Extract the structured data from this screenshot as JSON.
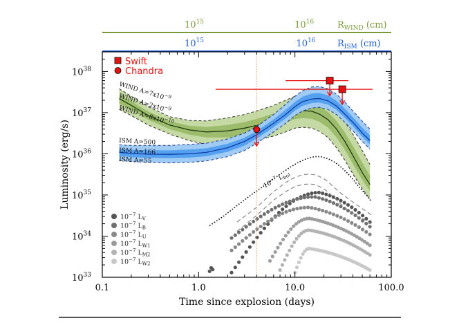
{
  "chart_data": {
    "type": "scatter",
    "xlabel": "Time since explosion (days)",
    "ylabel": "Luminosity (erg/s)",
    "x_scale": "log",
    "y_scale": "log",
    "xlim": [
      0.1,
      100
    ],
    "ylim": [
      1e+33,
      3e+38
    ],
    "x_ticks": [
      {
        "value": 0.1,
        "label": "0.1"
      },
      {
        "value": 1,
        "label": "1.0"
      },
      {
        "value": 10,
        "label": "10.0"
      },
      {
        "value": 100,
        "label": "100.0"
      }
    ],
    "y_ticks": [
      {
        "value": 1e+33,
        "exp": "33"
      },
      {
        "value": 1e+34,
        "exp": "34"
      },
      {
        "value": 1e+35,
        "exp": "35"
      },
      {
        "value": 1e+36,
        "exp": "36"
      },
      {
        "value": 1e+37,
        "exp": "37"
      },
      {
        "value": 1e+38,
        "exp": "38"
      }
    ],
    "top_axis_wind": {
      "label_main": "R",
      "label_sub": "WIND",
      "label_unit": " (cm)",
      "color": "#7a9a3a",
      "ticks": [
        {
          "t": 0.9,
          "exp": "15"
        },
        {
          "t": 12.5,
          "exp": "16"
        }
      ]
    },
    "top_axis_ism": {
      "label_main": "R",
      "label_sub": "ISM",
      "label_unit": " (cm)",
      "color": "#1f5fe0",
      "ticks": [
        {
          "t": 0.9,
          "exp": "15"
        },
        {
          "t": 13,
          "exp": "16"
        }
      ]
    },
    "legend": [
      {
        "name": "Swift",
        "marker": "square",
        "color": "#e81010"
      },
      {
        "name": "Chandra",
        "marker": "circle",
        "color": "#e81010"
      }
    ],
    "uv_legend": [
      {
        "pre": "10",
        "exp": "−7",
        "main": " L",
        "sub": "V",
        "color": "#555555"
      },
      {
        "pre": "10",
        "exp": "−7",
        "main": " L",
        "sub": "B",
        "color": "#707070"
      },
      {
        "pre": "10",
        "exp": "−7",
        "main": " L",
        "sub": "U",
        "color": "#888888"
      },
      {
        "pre": "10",
        "exp": "−7",
        "main": " L",
        "sub": "W1",
        "color": "#9d9d9d"
      },
      {
        "pre": "10",
        "exp": "−7",
        "main": " L",
        "sub": "M2",
        "color": "#b3b3b3"
      },
      {
        "pre": "10",
        "exp": "−7",
        "main": " L",
        "sub": "W2",
        "color": "#c8c8c8"
      }
    ],
    "bol_label": {
      "pre": "10",
      "exp": "−7",
      "main": " L",
      "sub": "bol"
    },
    "wind_models": [
      {
        "label": "WIND A=7x10",
        "exp": "−9"
      },
      {
        "label": "WIND A=2x10",
        "exp": "−9"
      },
      {
        "label": "WIND A=8x10",
        "exp": "−10"
      }
    ],
    "ism_models": [
      {
        "label": "ISM A=500"
      },
      {
        "label": "ISM A=166"
      },
      {
        "label": "ISM A=55"
      }
    ],
    "swift_upper_limits": [
      {
        "t": 23,
        "L": 6e+37,
        "t_low": 8,
        "t_high": 36
      },
      {
        "t": 31,
        "L": 3.7e+37,
        "t_low": 1.5,
        "t_high": 64
      }
    ],
    "chandra_upper_limits": [
      {
        "t": 4.0,
        "L": 3.9e+36
      }
    ],
    "vertical_marker_t": 4.0,
    "wind_curves": {
      "t": [
        0.15,
        0.2,
        0.3,
        0.5,
        0.8,
        1.2,
        2,
        3,
        4,
        6,
        8,
        10,
        12,
        15,
        18,
        22,
        27,
        33,
        40,
        50,
        60
      ],
      "upper": [
        3.8e+37,
        2.5e+37,
        1.4e+37,
        8e+36,
        6.5e+36,
        6.3e+36,
        7.5e+36,
        9e+36,
        1.1e+37,
        1.5e+37,
        2e+37,
        2.5e+37,
        2.7e+37,
        2.7e+37,
        2.4e+37,
        1.8e+37,
        1.1e+37,
        6e+36,
        3e+36,
        1.2e+36,
        5.5e+35
      ],
      "mid": [
        2.2e+37,
        1.5e+37,
        8.5e+36,
        5e+36,
        3.8e+36,
        3.4e+36,
        3.6e+36,
        4.2e+36,
        4.9e+36,
        6.5e+36,
        8.5e+36,
        1.05e+37,
        1.12e+37,
        1.08e+37,
        9.2e+36,
        6.8e+36,
        4e+36,
        2e+36,
        9e+35,
        3.5e+35,
        1.8e+35
      ],
      "lower": [
        1.2e+37,
        8.5e+36,
        5e+36,
        3e+36,
        2.1e+36,
        1.7e+36,
        1.6e+36,
        1.8e+36,
        2.1e+36,
        2.7e+36,
        3.4e+36,
        4.2e+36,
        4.4e+36,
        4.2e+36,
        3.5e+36,
        2.5e+36,
        1.4e+36,
        7e+35,
        3.2e+35,
        1.4e+35,
        8e+34
      ]
    },
    "ism_curves": {
      "t": [
        0.15,
        0.2,
        0.3,
        0.5,
        0.8,
        1.2,
        2,
        3,
        4,
        6,
        8,
        10,
        12,
        15,
        18,
        22,
        27,
        33,
        40,
        50,
        60
      ],
      "upper": [
        1.65e+36,
        1.6e+36,
        1.6e+36,
        1.6e+36,
        1.7e+36,
        1.8e+36,
        2.3e+36,
        3.2e+36,
        4.6e+36,
        9e+36,
        1.6e+37,
        2.5e+37,
        3.4e+37,
        4.2e+37,
        4.3e+37,
        3.8e+37,
        2.8e+37,
        1.8e+37,
        1.1e+37,
        6.2e+36,
        4e+36
      ],
      "mid": [
        1.08e+36,
        1.02e+36,
        9.8e+35,
        9.7e+35,
        1e+36,
        1.08e+36,
        1.4e+36,
        2e+36,
        2.9e+36,
        5.5e+36,
        9e+36,
        1.4e+37,
        1.85e+37,
        2.15e+37,
        2.2e+37,
        1.95e+37,
        1.45e+37,
        9.2e+36,
        5.8e+36,
        3.2e+36,
        2.1e+36
      ],
      "lower": [
        7e+35,
        6.5e+35,
        6.2e+35,
        6e+35,
        6.2e+35,
        6.7e+35,
        8.5e+35,
        1.2e+36,
        1.8e+36,
        3.4e+36,
        5.5e+36,
        8.5e+36,
        1.1e+37,
        1.3e+37,
        1.35e+37,
        1.2e+37,
        9e+36,
        5.8e+36,
        3.6e+36,
        2e+36,
        1.3e+36
      ]
    },
    "bolometric": {
      "t": [
        1.3,
        1.8,
        2.5,
        3.5,
        5,
        7,
        9,
        11,
        13,
        15,
        17,
        19,
        22,
        26,
        30,
        35,
        40,
        47,
        55,
        62
      ],
      "L": [
        1.8e+34,
        3e+34,
        5.5e+34,
        1e+35,
        1.8e+35,
        3.2e+35,
        4.8e+35,
        6.3e+35,
        7.5e+35,
        8.3e+35,
        8.6e+35,
        8.4e+35,
        7.6e+35,
        6.2e+35,
        4.8e+35,
        3.4e+35,
        2.4e+35,
        1.5e+35,
        1e+35,
        7e+34
      ]
    },
    "band_dashed_templates": [
      {
        "t": [
          2.5,
          4,
          6,
          8,
          10,
          12,
          14,
          16,
          18,
          21,
          25,
          30,
          36,
          45,
          55,
          62
        ],
        "L": [
          2.2e+34,
          5e+34,
          1.2e+35,
          2e+35,
          2.7e+35,
          3.1e+35,
          3.2e+35,
          3.1e+35,
          2.8e+35,
          2.3e+35,
          1.6e+35,
          1.1e+35,
          8e+34,
          5.5e+34,
          4e+34,
          3.3e+34
        ]
      },
      {
        "t": [
          2.5,
          4,
          6,
          8,
          10,
          12,
          14,
          16,
          18,
          21,
          25,
          30,
          36,
          45,
          55,
          62
        ],
        "L": [
          1.3e+34,
          3.2e+34,
          7.5e+34,
          1.2e+35,
          1.6e+35,
          1.8e+35,
          1.85e+35,
          1.8e+35,
          1.6e+35,
          1.3e+35,
          9e+34,
          6e+34,
          4.2e+34,
          3e+34,
          2.4e+34,
          2e+34
        ]
      }
    ],
    "uv_bands": [
      {
        "name": "V",
        "t_start": 1.3,
        "t_start2": 2.2,
        "peak_t": 18,
        "peak_L": 1.15e+35,
        "end_L": 2.2e+34,
        "start_L": 1.3e+33,
        "color": "#555555"
      },
      {
        "name": "B",
        "t_start": 2.2,
        "t_start2": 2.2,
        "peak_t": 16,
        "peak_L": 9e+34,
        "end_L": 1.7e+34,
        "start_L": 9e+33,
        "color": "#707070"
      },
      {
        "name": "U",
        "t_start": 2.2,
        "t_start2": 2.2,
        "peak_t": 14,
        "peak_L": 5e+34,
        "end_L": 1.1e+34,
        "start_L": 4.5e+33,
        "color": "#888888"
      },
      {
        "name": "W1",
        "t_start": 5.5,
        "t_start2": 5.5,
        "peak_t": 14,
        "peak_L": 2.7e+34,
        "end_L": 6e+33,
        "start_L": 2.5e+33,
        "color": "#9d9d9d"
      },
      {
        "name": "M2",
        "t_start": 7,
        "t_start2": 7,
        "peak_t": 14,
        "peak_L": 1.4e+34,
        "end_L": 3.5e+33,
        "start_L": 1.5e+33,
        "color": "#b3b3b3"
      },
      {
        "name": "W2",
        "t_start": 10,
        "t_start2": 10,
        "peak_t": 14,
        "peak_L": 5e+33,
        "end_L": 1.5e+33,
        "start_L": 1.3e+33,
        "color": "#c8c8c8"
      }
    ]
  }
}
